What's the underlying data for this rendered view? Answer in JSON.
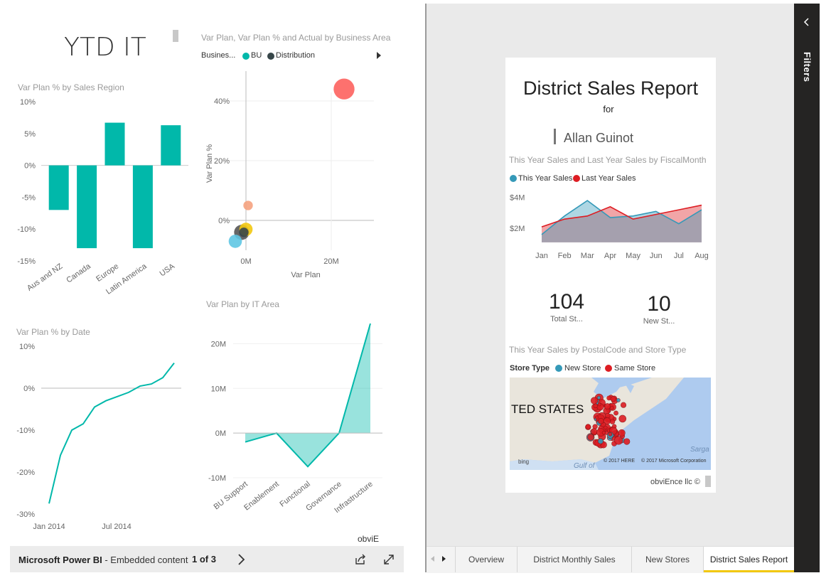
{
  "left_report": {
    "title": "YTD IT",
    "watermark": "obviE",
    "bar_chart": {
      "title": "Var Plan % by Sales Region",
      "chart_data": {
        "type": "bar",
        "categories": [
          "Aus and NZ",
          "Canada",
          "Europe",
          "Latin America",
          "USA"
        ],
        "values": [
          -7,
          -13,
          6.7,
          -13,
          6.3
        ],
        "ylim": [
          -15,
          10
        ],
        "yticks": [
          "10%",
          "5%",
          "0%",
          "-5%",
          "-10%",
          "-15%"
        ],
        "color": "#01b8aa"
      }
    },
    "scatter_chart": {
      "title": "Var Plan, Var Plan % and Actual by Business Area",
      "legend_label": "Busines...",
      "legend_items": [
        {
          "name": "BU",
          "color": "#01b8aa"
        },
        {
          "name": "Distribution",
          "color": "#374649"
        }
      ],
      "xlabel": "Var Plan",
      "ylabel": "Var Plan %",
      "xticks": [
        "0M",
        "20M"
      ],
      "yticks": [
        "40%",
        "20%",
        "0%"
      ],
      "chart_data": {
        "type": "scatter",
        "xlim": [
          -4,
          30
        ],
        "ylim": [
          -10,
          50
        ],
        "points": [
          {
            "x": 23,
            "y": 44,
            "size": 22,
            "color": "#fd625e"
          },
          {
            "x": 0.5,
            "y": 5,
            "size": 10,
            "color": "#f5a27f"
          },
          {
            "x": -1,
            "y": -4,
            "size": 16,
            "color": "#555555"
          },
          {
            "x": 0,
            "y": -3,
            "size": 14,
            "color": "#f2c80f"
          },
          {
            "x": -0.5,
            "y": -4,
            "size": 10,
            "color": "#374649"
          },
          {
            "x": -2.5,
            "y": -7,
            "size": 14,
            "color": "#5fc7e3"
          }
        ]
      }
    },
    "line_chart": {
      "title": "Var Plan % by Date",
      "yticks": [
        "10%",
        "0%",
        "-10%",
        "-20%",
        "-30%"
      ],
      "xticks": [
        "Jan 2014",
        "Jul 2014"
      ],
      "chart_data": {
        "type": "line",
        "ylim": [
          -30,
          10
        ],
        "values": [
          -27.5,
          -16,
          -10,
          -8.5,
          -4.5,
          -3,
          -2,
          -1,
          0.5,
          1,
          2.5,
          6
        ],
        "color": "#01b8aa"
      }
    },
    "area_chart": {
      "title": "Var Plan by IT Area",
      "yticks": [
        "20M",
        "10M",
        "0M",
        "-10M"
      ],
      "chart_data": {
        "type": "area",
        "categories": [
          "BU Support",
          "Enablement",
          "Functional",
          "Governance",
          "Infrastructure"
        ],
        "values": [
          -2,
          0,
          -7.5,
          0,
          24.5
        ],
        "ylim": [
          -10,
          25
        ],
        "color": "#01b8aa"
      }
    },
    "footer": {
      "app": "Microsoft Power BI",
      "subtitle": " - Embedded content",
      "pager": "1 of  3",
      "pager_of": "of"
    }
  },
  "right_report": {
    "title": "District Sales Report",
    "for_label": "for",
    "manager": "Allan Guinot",
    "area_chart": {
      "title": "This Year Sales and Last Year Sales by FiscalMonth",
      "legend": [
        {
          "name": "This Year Sales",
          "color": "#3599b8"
        },
        {
          "name": "Last Year Sales",
          "color": "#dd1d23"
        }
      ],
      "yticks": [
        "$4M",
        "$2M"
      ],
      "chart_data": {
        "type": "area",
        "categories": [
          "Jan",
          "Feb",
          "Mar",
          "Apr",
          "May",
          "Jun",
          "Jul",
          "Aug"
        ],
        "ylim": [
          1,
          4.4
        ],
        "series": [
          {
            "name": "This Year Sales",
            "values": [
              1.6,
              2.8,
              3.8,
              2.7,
              2.8,
              3.1,
              2.3,
              3.2
            ]
          },
          {
            "name": "Last Year Sales",
            "values": [
              2.1,
              2.6,
              2.8,
              3.4,
              2.6,
              2.9,
              3.2,
              3.5
            ]
          }
        ]
      }
    },
    "kpis": [
      {
        "value": "104",
        "label": "Total St..."
      },
      {
        "value": "10",
        "label": "New St..."
      }
    ],
    "map": {
      "title": "This Year Sales by PostalCode and Store Type",
      "legend_title": "Store Type",
      "legend": [
        {
          "name": "New Store",
          "color": "#3599b8"
        },
        {
          "name": "Same Store",
          "color": "#dd1d23"
        }
      ],
      "country_label": "TED STATES",
      "sea_label": "Sarga",
      "gulf_label": "Gulf of",
      "bing": "bing",
      "copyright1": "© 2017 HERE",
      "copyright2": "© 2017 Microsoft Corporation"
    },
    "watermark": "obviEnce llc ©",
    "filters_label": "Filters",
    "tabs": [
      "Overview",
      "District Monthly Sales",
      "New Stores",
      "District Sales Report"
    ],
    "active_tab": "District Sales Report"
  }
}
